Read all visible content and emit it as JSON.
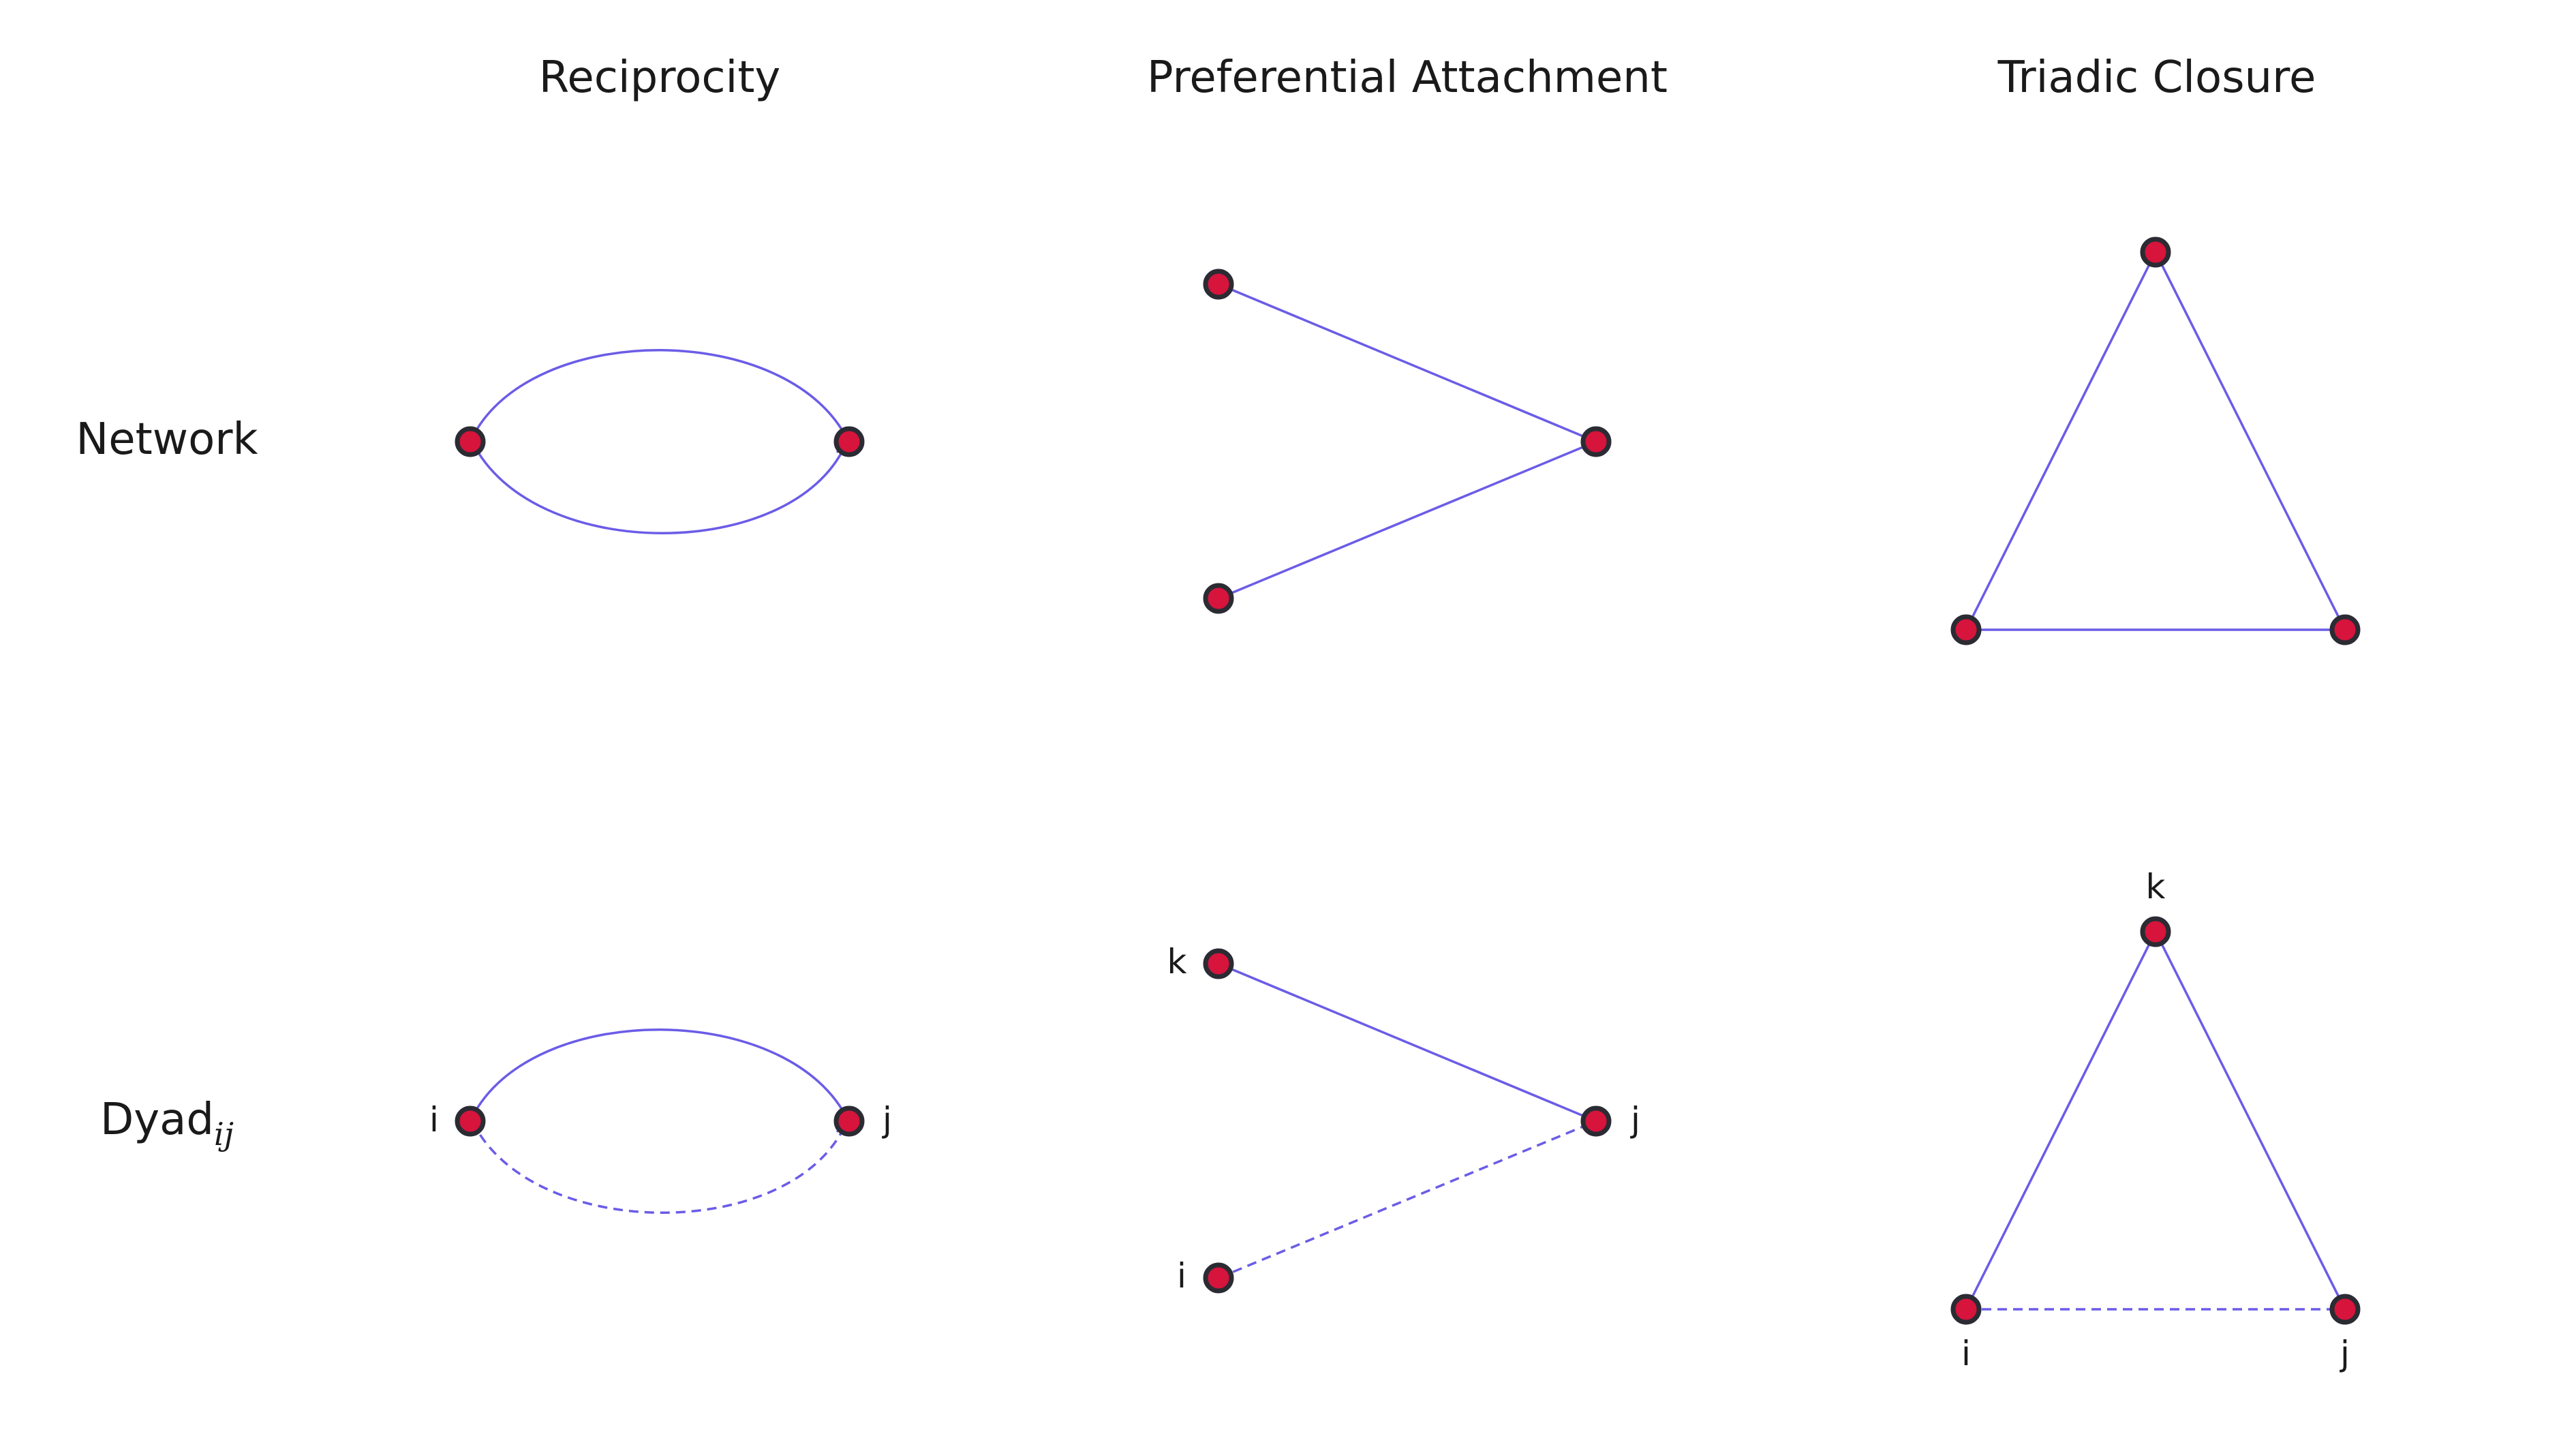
{
  "columns": [
    {
      "title": "Reciprocity"
    },
    {
      "title": "Preferential Attachment"
    },
    {
      "title": "Triadic Closure"
    }
  ],
  "rows": [
    {
      "label": "Network"
    },
    {
      "label": "Dyad",
      "label_subscript": "ij"
    }
  ],
  "node_labels": {
    "i": "i",
    "j": "j",
    "k": "k"
  },
  "colors": {
    "node_fill": "#d6143c",
    "node_stroke": "#2b2b33",
    "edge": "#6b5ce7",
    "text": "#1a1a1a"
  }
}
